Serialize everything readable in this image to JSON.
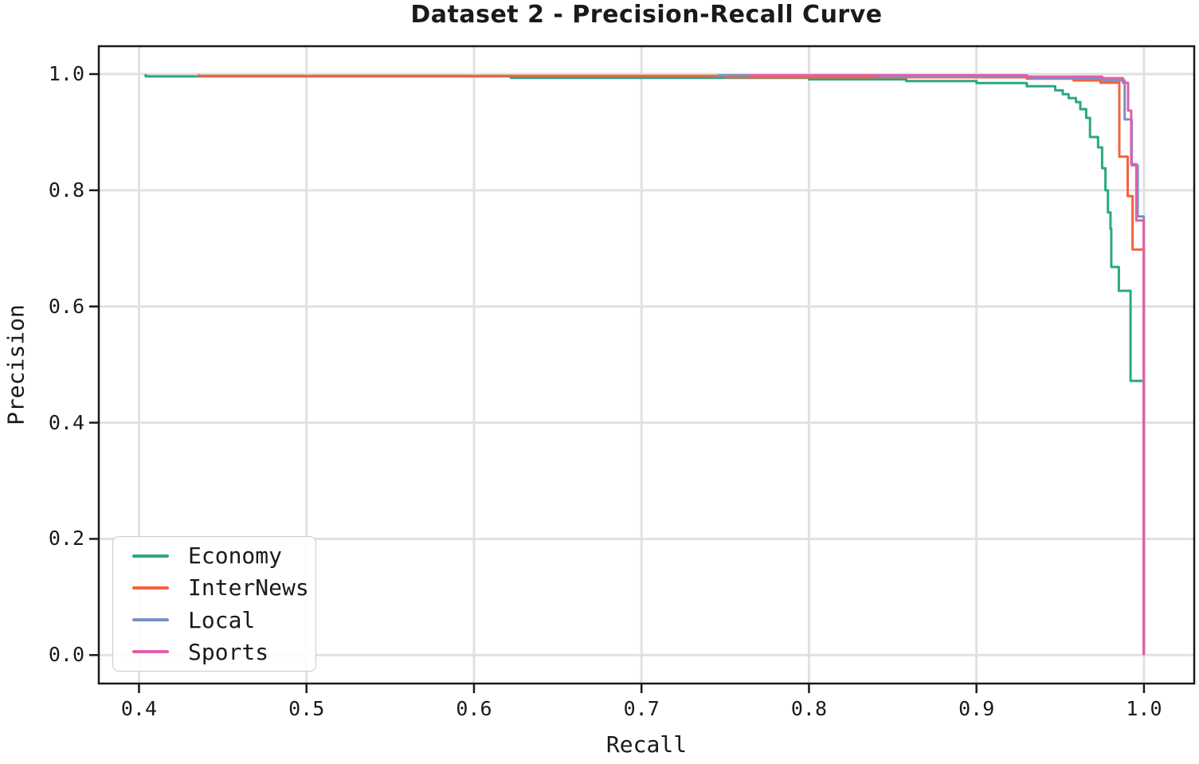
{
  "chart_data": {
    "type": "line",
    "title": "Dataset 2 - Precision-Recall Curve",
    "xlabel": "Recall",
    "ylabel": "Precision",
    "grid": true,
    "legend_position": "lower left",
    "xlim": [
      0.376,
      1.03
    ],
    "ylim": [
      -0.049,
      1.048
    ],
    "x_ticks": [
      0.4,
      0.5,
      0.6,
      0.7,
      0.8,
      0.9,
      1.0
    ],
    "x_tick_labels": [
      "0.4",
      "0.5",
      "0.6",
      "0.7",
      "0.8",
      "0.9",
      "1.0"
    ],
    "y_ticks": [
      0.0,
      0.2,
      0.4,
      0.6,
      0.8,
      1.0
    ],
    "y_tick_labels": [
      "0.0",
      "0.2",
      "0.4",
      "0.6",
      "0.8",
      "1.0"
    ],
    "colors": {
      "grid": "#e1e1e1",
      "spine": "#1a1a1a",
      "text": "#1a1a1a",
      "background": "#ffffff"
    },
    "series": [
      {
        "name": "Economy",
        "color": "#2aa883",
        "points": [
          [
            0.404,
            1.0
          ],
          [
            0.404,
            0.996
          ],
          [
            0.622,
            0.996
          ],
          [
            0.622,
            0.9935
          ],
          [
            0.8,
            0.9935
          ],
          [
            0.8,
            0.991
          ],
          [
            0.858,
            0.991
          ],
          [
            0.858,
            0.988
          ],
          [
            0.9,
            0.988
          ],
          [
            0.9,
            0.9845
          ],
          [
            0.93,
            0.9845
          ],
          [
            0.93,
            0.979
          ],
          [
            0.947,
            0.979
          ],
          [
            0.947,
            0.972
          ],
          [
            0.9515,
            0.972
          ],
          [
            0.9515,
            0.9655
          ],
          [
            0.955,
            0.9655
          ],
          [
            0.955,
            0.9587
          ],
          [
            0.9594,
            0.9587
          ],
          [
            0.9594,
            0.9519
          ],
          [
            0.962,
            0.9519
          ],
          [
            0.962,
            0.9397
          ],
          [
            0.9655,
            0.9397
          ],
          [
            0.9655,
            0.9246
          ],
          [
            0.9678,
            0.9246
          ],
          [
            0.9678,
            0.8917
          ],
          [
            0.9726,
            0.8917
          ],
          [
            0.9726,
            0.8738
          ],
          [
            0.975,
            0.8738
          ],
          [
            0.975,
            0.838
          ],
          [
            0.977,
            0.838
          ],
          [
            0.977,
            0.8
          ],
          [
            0.9785,
            0.8
          ],
          [
            0.9785,
            0.762
          ],
          [
            0.98,
            0.762
          ],
          [
            0.98,
            0.734
          ],
          [
            0.9805,
            0.734
          ],
          [
            0.9805,
            0.668
          ],
          [
            0.985,
            0.668
          ],
          [
            0.985,
            0.627
          ],
          [
            0.992,
            0.627
          ],
          [
            0.992,
            0.472
          ],
          [
            0.9999,
            0.472
          ],
          [
            0.9999,
            0.0
          ]
        ]
      },
      {
        "name": "InterNews",
        "color": "#f4623f",
        "points": [
          [
            0.436,
            1.0
          ],
          [
            0.436,
            0.997
          ],
          [
            0.75,
            0.997
          ],
          [
            0.75,
            0.9945
          ],
          [
            0.93,
            0.9945
          ],
          [
            0.93,
            0.992
          ],
          [
            0.958,
            0.992
          ],
          [
            0.958,
            0.989
          ],
          [
            0.974,
            0.989
          ],
          [
            0.974,
            0.985
          ],
          [
            0.9853,
            0.985
          ],
          [
            0.9853,
            0.858
          ],
          [
            0.9903,
            0.858
          ],
          [
            0.9903,
            0.79
          ],
          [
            0.9932,
            0.79
          ],
          [
            0.9932,
            0.698
          ],
          [
            0.9999,
            0.698
          ],
          [
            0.9999,
            0.0
          ]
        ]
      },
      {
        "name": "Local",
        "color": "#7b91c5",
        "points": [
          [
            0.746,
            1.0
          ],
          [
            0.746,
            0.998
          ],
          [
            0.841,
            0.998
          ],
          [
            0.841,
            0.9955
          ],
          [
            0.932,
            0.9955
          ],
          [
            0.932,
            0.9925
          ],
          [
            0.975,
            0.9925
          ],
          [
            0.975,
            0.989
          ],
          [
            0.9885,
            0.989
          ],
          [
            0.9885,
            0.922
          ],
          [
            0.9927,
            0.922
          ],
          [
            0.9927,
            0.843
          ],
          [
            0.9963,
            0.843
          ],
          [
            0.9963,
            0.755
          ],
          [
            0.9999,
            0.755
          ],
          [
            0.9999,
            0.0
          ]
        ]
      },
      {
        "name": "Sports",
        "color": "#e05fa9",
        "points": [
          [
            0.765,
            1.0
          ],
          [
            0.765,
            0.998
          ],
          [
            0.93,
            0.998
          ],
          [
            0.93,
            0.9955
          ],
          [
            0.975,
            0.9955
          ],
          [
            0.975,
            0.993
          ],
          [
            0.9875,
            0.993
          ],
          [
            0.9875,
            0.985
          ],
          [
            0.9905,
            0.985
          ],
          [
            0.9905,
            0.937
          ],
          [
            0.9924,
            0.937
          ],
          [
            0.9924,
            0.845
          ],
          [
            0.9954,
            0.845
          ],
          [
            0.9954,
            0.748
          ],
          [
            0.9999,
            0.748
          ],
          [
            0.9999,
            0.0
          ]
        ]
      }
    ]
  }
}
